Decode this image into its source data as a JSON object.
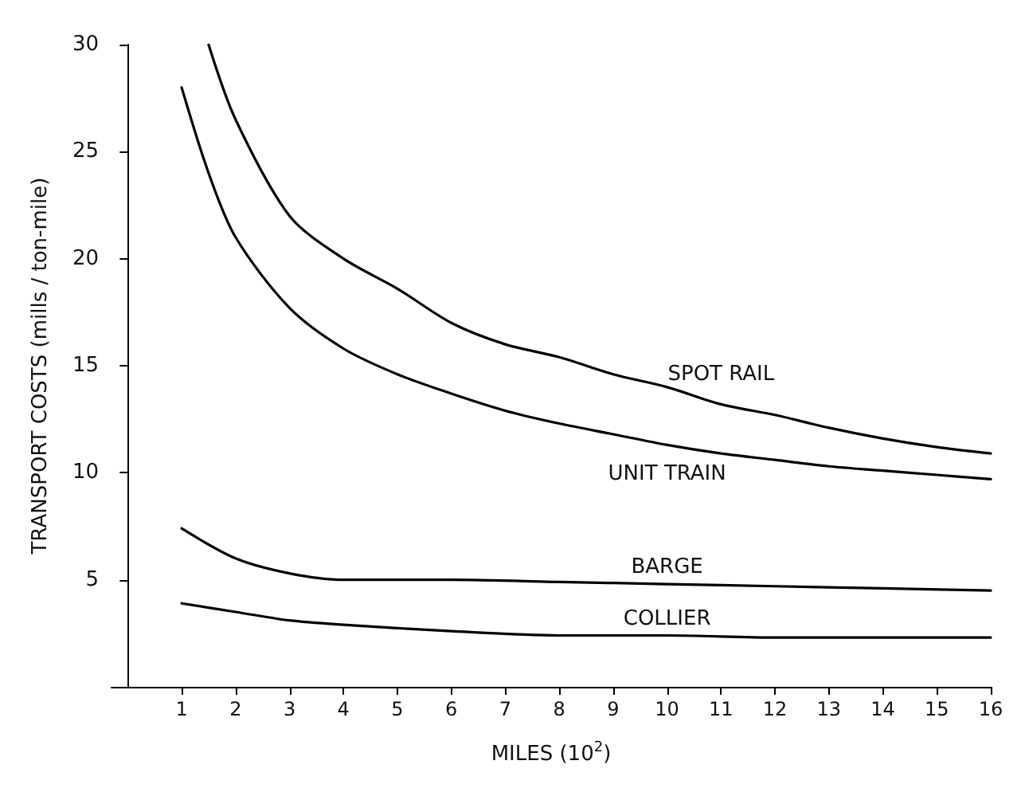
{
  "chart_data": {
    "type": "line",
    "xlabel": "MILES (10$^{2}$)",
    "ylabel": "TRANSPORT COSTS (mills / ton-mile)",
    "xlim": [
      -0.3,
      16
    ],
    "xticks": [
      1,
      2,
      3,
      4,
      5,
      6,
      7,
      8,
      9,
      10,
      11,
      12,
      13,
      14,
      15,
      16
    ],
    "ylim": [
      0,
      30
    ],
    "yticks": [
      5,
      10,
      15,
      20,
      25,
      30
    ],
    "grid": false,
    "legend": false,
    "marker": "none",
    "line_style": "solid",
    "series": [
      {
        "name": "SPOT RAIL",
        "color": "#000000",
        "x": [
          1.5,
          2,
          3,
          4,
          5,
          6,
          7,
          8,
          9,
          10,
          11,
          12,
          13,
          14,
          15,
          16
        ],
        "values": [
          30,
          26.5,
          22,
          20,
          18.6,
          17,
          16,
          15.4,
          14.6,
          14,
          13.2,
          12.7,
          12.1,
          11.6,
          11.2,
          10.9
        ]
      },
      {
        "name": "UNIT TRAIN",
        "color": "#000000",
        "x": [
          1,
          1.5,
          2,
          3,
          4,
          5,
          6,
          7,
          8,
          9,
          10,
          11,
          12,
          13,
          14,
          15,
          16
        ],
        "values": [
          28,
          24,
          21,
          17.7,
          15.8,
          14.6,
          13.7,
          12.9,
          12.3,
          11.8,
          11.3,
          10.9,
          10.6,
          10.3,
          10.1,
          9.9,
          9.7
        ]
      },
      {
        "name": "BARGE",
        "color": "#000000",
        "x": [
          1,
          2,
          3,
          4,
          6,
          8,
          10,
          12,
          14,
          16
        ],
        "values": [
          7.4,
          6,
          5.3,
          5,
          5,
          4.9,
          4.8,
          4.7,
          4.6,
          4.5
        ]
      },
      {
        "name": "COLLIER",
        "color": "#000000",
        "x": [
          1,
          2,
          3,
          4,
          6,
          8,
          10,
          12,
          14,
          16
        ],
        "values": [
          3.9,
          3.5,
          3.1,
          2.9,
          2.6,
          2.4,
          2.4,
          2.3,
          2.3,
          2.3
        ]
      }
    ]
  }
}
